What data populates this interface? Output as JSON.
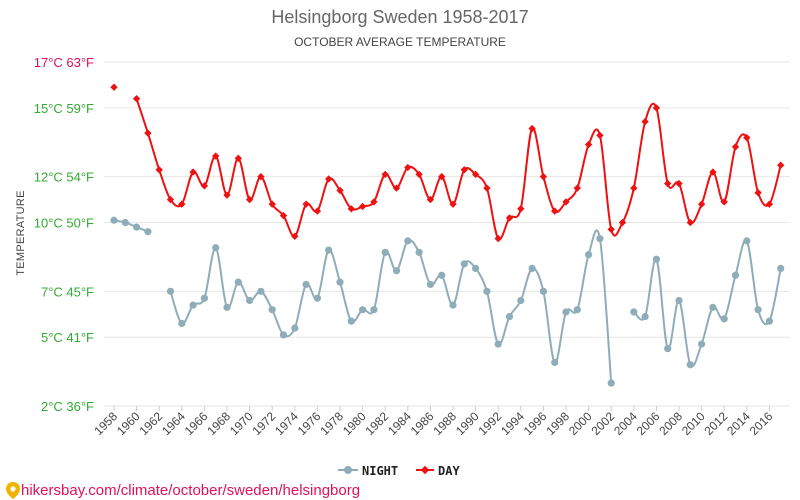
{
  "chart_data": {
    "type": "line",
    "title": "Helsingborg Sweden 1958-2017",
    "subtitle": "OCTOBER AVERAGE TEMPERATURE",
    "ylabel": "TEMPERATURE",
    "ylim": [
      2,
      17
    ],
    "y_ticks": [
      {
        "value": 2,
        "label": "2°C 36°F",
        "color": "#33aa33"
      },
      {
        "value": 5,
        "label": "5°C 41°F",
        "color": "#33aa33"
      },
      {
        "value": 7,
        "label": "7°C 45°F",
        "color": "#33aa33"
      },
      {
        "value": 10,
        "label": "10°C 50°F",
        "color": "#33aa33"
      },
      {
        "value": 12,
        "label": "12°C 54°F",
        "color": "#33aa33"
      },
      {
        "value": 15,
        "label": "15°C 59°F",
        "color": "#33aa33"
      },
      {
        "value": 17,
        "label": "17°C 63°F",
        "color": "#e0105a"
      }
    ],
    "x_range": [
      1958,
      2017
    ],
    "x_tick_labels": [
      "1958",
      "1960",
      "1962",
      "1964",
      "1966",
      "1968",
      "1970",
      "1972",
      "1974",
      "1976",
      "1978",
      "1980",
      "1982",
      "1984",
      "1986",
      "1988",
      "1990",
      "1992",
      "1994",
      "1996",
      "1998",
      "2000",
      "2002",
      "2004",
      "2006",
      "2008",
      "2010",
      "2012",
      "2014",
      "2016"
    ],
    "grid": true,
    "legend_position": "bottom-center",
    "series": [
      {
        "name": "NIGHT",
        "color": "#8fadb8",
        "marker": "circle",
        "x": [
          1958,
          1959,
          1960,
          1961,
          1962,
          1963,
          1964,
          1965,
          1966,
          1967,
          1968,
          1969,
          1970,
          1971,
          1972,
          1973,
          1974,
          1975,
          1976,
          1977,
          1978,
          1979,
          1980,
          1981,
          1982,
          1983,
          1984,
          1985,
          1986,
          1987,
          1988,
          1989,
          1990,
          1991,
          1992,
          1993,
          1994,
          1995,
          1996,
          1997,
          1998,
          1999,
          2000,
          2001,
          2002,
          2003,
          2004,
          2005,
          2006,
          2007,
          2008,
          2009,
          2010,
          2011,
          2012,
          2013,
          2014,
          2015,
          2016,
          2017
        ],
        "values": [
          10.1,
          10.0,
          9.8,
          9.6,
          null,
          7.0,
          5.6,
          6.4,
          6.7,
          8.9,
          6.3,
          7.4,
          6.6,
          7.0,
          6.2,
          5.1,
          5.4,
          7.3,
          6.7,
          8.8,
          7.4,
          5.7,
          6.2,
          6.2,
          8.7,
          7.9,
          9.2,
          8.7,
          7.3,
          7.7,
          6.4,
          8.2,
          8.0,
          7.0,
          4.7,
          5.9,
          6.6,
          8.0,
          7.0,
          3.9,
          6.1,
          6.2,
          8.6,
          9.3,
          3.0,
          null,
          6.1,
          5.9,
          8.4,
          4.5,
          6.6,
          3.8,
          4.7,
          6.3,
          5.8,
          7.7,
          9.2,
          6.2,
          5.7,
          8.0
        ]
      },
      {
        "name": "DAY",
        "color": "#ee1111",
        "marker": "diamond",
        "x": [
          1958,
          1959,
          1960,
          1961,
          1962,
          1963,
          1964,
          1965,
          1966,
          1967,
          1968,
          1969,
          1970,
          1971,
          1972,
          1973,
          1974,
          1975,
          1976,
          1977,
          1978,
          1979,
          1980,
          1981,
          1982,
          1983,
          1984,
          1985,
          1986,
          1987,
          1988,
          1989,
          1990,
          1991,
          1992,
          1993,
          1994,
          1995,
          1996,
          1997,
          1998,
          1999,
          2000,
          2001,
          2002,
          2003,
          2004,
          2005,
          2006,
          2007,
          2008,
          2009,
          2010,
          2011,
          2012,
          2013,
          2014,
          2015,
          2016,
          2017
        ],
        "values": [
          15.9,
          null,
          15.4,
          13.9,
          12.3,
          11.0,
          10.8,
          12.2,
          11.6,
          12.9,
          11.2,
          12.8,
          11.0,
          12.0,
          10.8,
          10.3,
          9.4,
          10.8,
          10.5,
          11.9,
          11.4,
          10.6,
          10.7,
          10.9,
          12.1,
          11.5,
          12.4,
          12.1,
          11.0,
          12.0,
          10.8,
          12.3,
          12.1,
          11.5,
          9.3,
          10.2,
          10.6,
          14.1,
          12.0,
          10.5,
          10.9,
          11.5,
          13.4,
          13.8,
          9.7,
          10.0,
          11.5,
          14.4,
          15.0,
          11.7,
          11.7,
          10.0,
          10.8,
          12.2,
          10.9,
          13.3,
          13.7,
          11.3,
          10.8,
          12.5
        ]
      }
    ]
  },
  "legend": {
    "items": [
      {
        "label": "NIGHT",
        "color": "#8fadb8"
      },
      {
        "label": "DAY",
        "color": "#ee1111"
      }
    ]
  },
  "footer": {
    "text": "hikersbay.com/climate/october/sweden/helsingborg",
    "color": "#e0105a",
    "icon": "location-pin-icon"
  }
}
